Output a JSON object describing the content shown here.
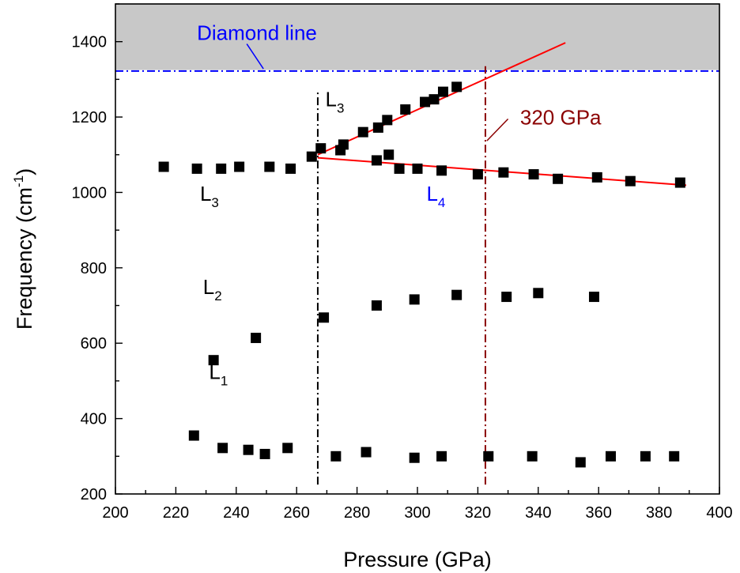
{
  "chart_data": {
    "type": "scatter",
    "xlabel": "Pressure (GPa)",
    "ylabel_main": "Frequency (cm",
    "ylabel_sup": "-1",
    "ylabel_tail": ")",
    "xlim": [
      200,
      400
    ],
    "ylim": [
      200,
      1500
    ],
    "xticks": [
      200,
      220,
      240,
      260,
      280,
      300,
      320,
      340,
      360,
      380,
      400
    ],
    "yticks": [
      200,
      400,
      600,
      800,
      1000,
      1200,
      1400
    ],
    "grid": false,
    "shaded_region": {
      "y_from": 1325,
      "y_to": 1500,
      "color": "#c8c8c8"
    },
    "series": [
      {
        "name": "L1",
        "color": "#000000",
        "points": [
          [
            226,
            355
          ],
          [
            235.5,
            322
          ],
          [
            244,
            317
          ],
          [
            249.5,
            306
          ],
          [
            257,
            322
          ],
          [
            273,
            300
          ],
          [
            283,
            311
          ],
          [
            299,
            296
          ],
          [
            308,
            300
          ],
          [
            323.5,
            300
          ],
          [
            338,
            300
          ],
          [
            354,
            284
          ],
          [
            364,
            300
          ],
          [
            375.5,
            300
          ],
          [
            385,
            300
          ]
        ]
      },
      {
        "name": "L2",
        "color": "#000000",
        "points": [
          [
            232.5,
            555
          ],
          [
            246.5,
            614
          ],
          [
            269,
            668
          ],
          [
            286.5,
            700
          ],
          [
            299,
            716
          ],
          [
            313,
            728
          ],
          [
            329.5,
            723
          ],
          [
            340,
            733
          ],
          [
            358.5,
            723
          ]
        ]
      },
      {
        "name": "L3",
        "color": "#000000",
        "points": [
          [
            216,
            1068
          ],
          [
            227,
            1063
          ],
          [
            235,
            1063
          ],
          [
            241,
            1068
          ],
          [
            251,
            1068
          ],
          [
            258,
            1063
          ],
          [
            265,
            1095
          ],
          [
            268,
            1117
          ],
          [
            274.5,
            1112
          ],
          [
            275.5,
            1127
          ],
          [
            282,
            1160
          ],
          [
            287,
            1172
          ],
          [
            290,
            1192
          ],
          [
            296,
            1220
          ],
          [
            302.5,
            1240
          ],
          [
            305.5,
            1247
          ],
          [
            308.5,
            1267
          ],
          [
            313,
            1280
          ]
        ]
      },
      {
        "name": "L4",
        "color": "#000000",
        "points": [
          [
            286.5,
            1085
          ],
          [
            290.5,
            1100
          ],
          [
            294,
            1063
          ],
          [
            300,
            1063
          ],
          [
            308,
            1058
          ],
          [
            320,
            1048
          ],
          [
            328.5,
            1053
          ],
          [
            338.5,
            1048
          ],
          [
            346.5,
            1036
          ],
          [
            359.5,
            1040
          ],
          [
            370.5,
            1030
          ],
          [
            387,
            1026
          ]
        ]
      }
    ],
    "fit_lines": [
      {
        "color": "#ff0000",
        "from": [
          267,
          1100
        ],
        "to": [
          349,
          1397
        ]
      },
      {
        "color": "#ff0000",
        "from": [
          267,
          1092
        ],
        "to": [
          389,
          1019
        ]
      }
    ],
    "reference_lines": [
      {
        "orientation": "horizontal",
        "value": 1322,
        "color": "#0000ff",
        "style": "dash-dot"
      },
      {
        "orientation": "vertical",
        "value": 267,
        "color": "#000000",
        "style": "dash-dot",
        "y_from": 225,
        "y_to": 1273
      },
      {
        "orientation": "vertical",
        "value": 322.5,
        "color": "#8b0000",
        "style": "dash-dot",
        "y_from": 225,
        "y_to": 1335
      }
    ],
    "annotations": [
      {
        "text": "Diamond line",
        "color": "#0000ff",
        "x": 227,
        "y": 1405
      },
      {
        "text": "L",
        "sub": "3",
        "color": "#000000",
        "x": 269.5,
        "y": 1228
      },
      {
        "text": "320 GPa",
        "color": "#8b0000",
        "x": 334,
        "y": 1180
      },
      {
        "text": "L",
        "sub": "3",
        "color": "#000000",
        "x": 228,
        "y": 978
      },
      {
        "text": "L",
        "sub": "4",
        "color": "#0000ff",
        "x": 303,
        "y": 978
      },
      {
        "text": "L",
        "sub": "2",
        "color": "#000000",
        "x": 229,
        "y": 730
      },
      {
        "text": "L",
        "sub": "1",
        "color": "#000000",
        "x": 231,
        "y": 505
      }
    ],
    "leaders": [
      {
        "from": [
          243.5,
          1394
        ],
        "to": [
          249,
          1328
        ],
        "color": "#0000ff"
      },
      {
        "from": [
          330,
          1195
        ],
        "to": [
          323,
          1137
        ],
        "color": "#8b0000"
      }
    ]
  }
}
